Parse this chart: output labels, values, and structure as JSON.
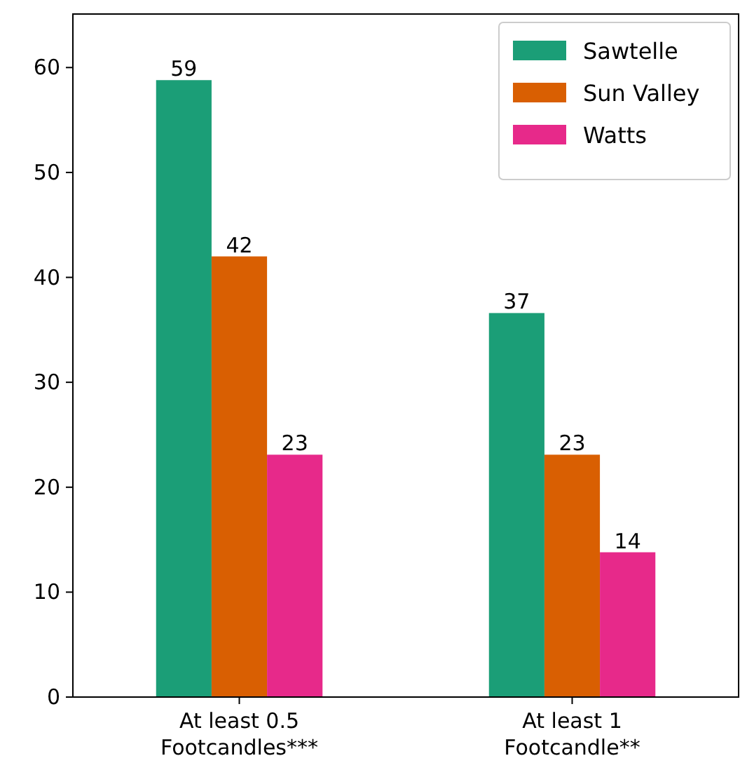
{
  "chart_data": {
    "type": "bar",
    "categories": [
      "At least 0.5\nFootcandles***",
      "At least 1\nFootcandle**"
    ],
    "series": [
      {
        "name": "Sawtelle",
        "color": "#1b9e77",
        "values": [
          58.8,
          36.6
        ],
        "value_labels": [
          "59",
          "37"
        ]
      },
      {
        "name": "Sun Valley",
        "color": "#d95f02",
        "values": [
          42,
          23.1
        ],
        "value_labels": [
          "42",
          "23"
        ]
      },
      {
        "name": "Watts",
        "color": "#e7298a",
        "values": [
          23.1,
          13.8
        ],
        "value_labels": [
          "23",
          "14"
        ]
      }
    ],
    "ylim": [
      0,
      65.1
    ],
    "yticks": [
      0,
      10,
      20,
      30,
      40,
      50,
      60
    ],
    "grid": false,
    "legend": "top right"
  }
}
